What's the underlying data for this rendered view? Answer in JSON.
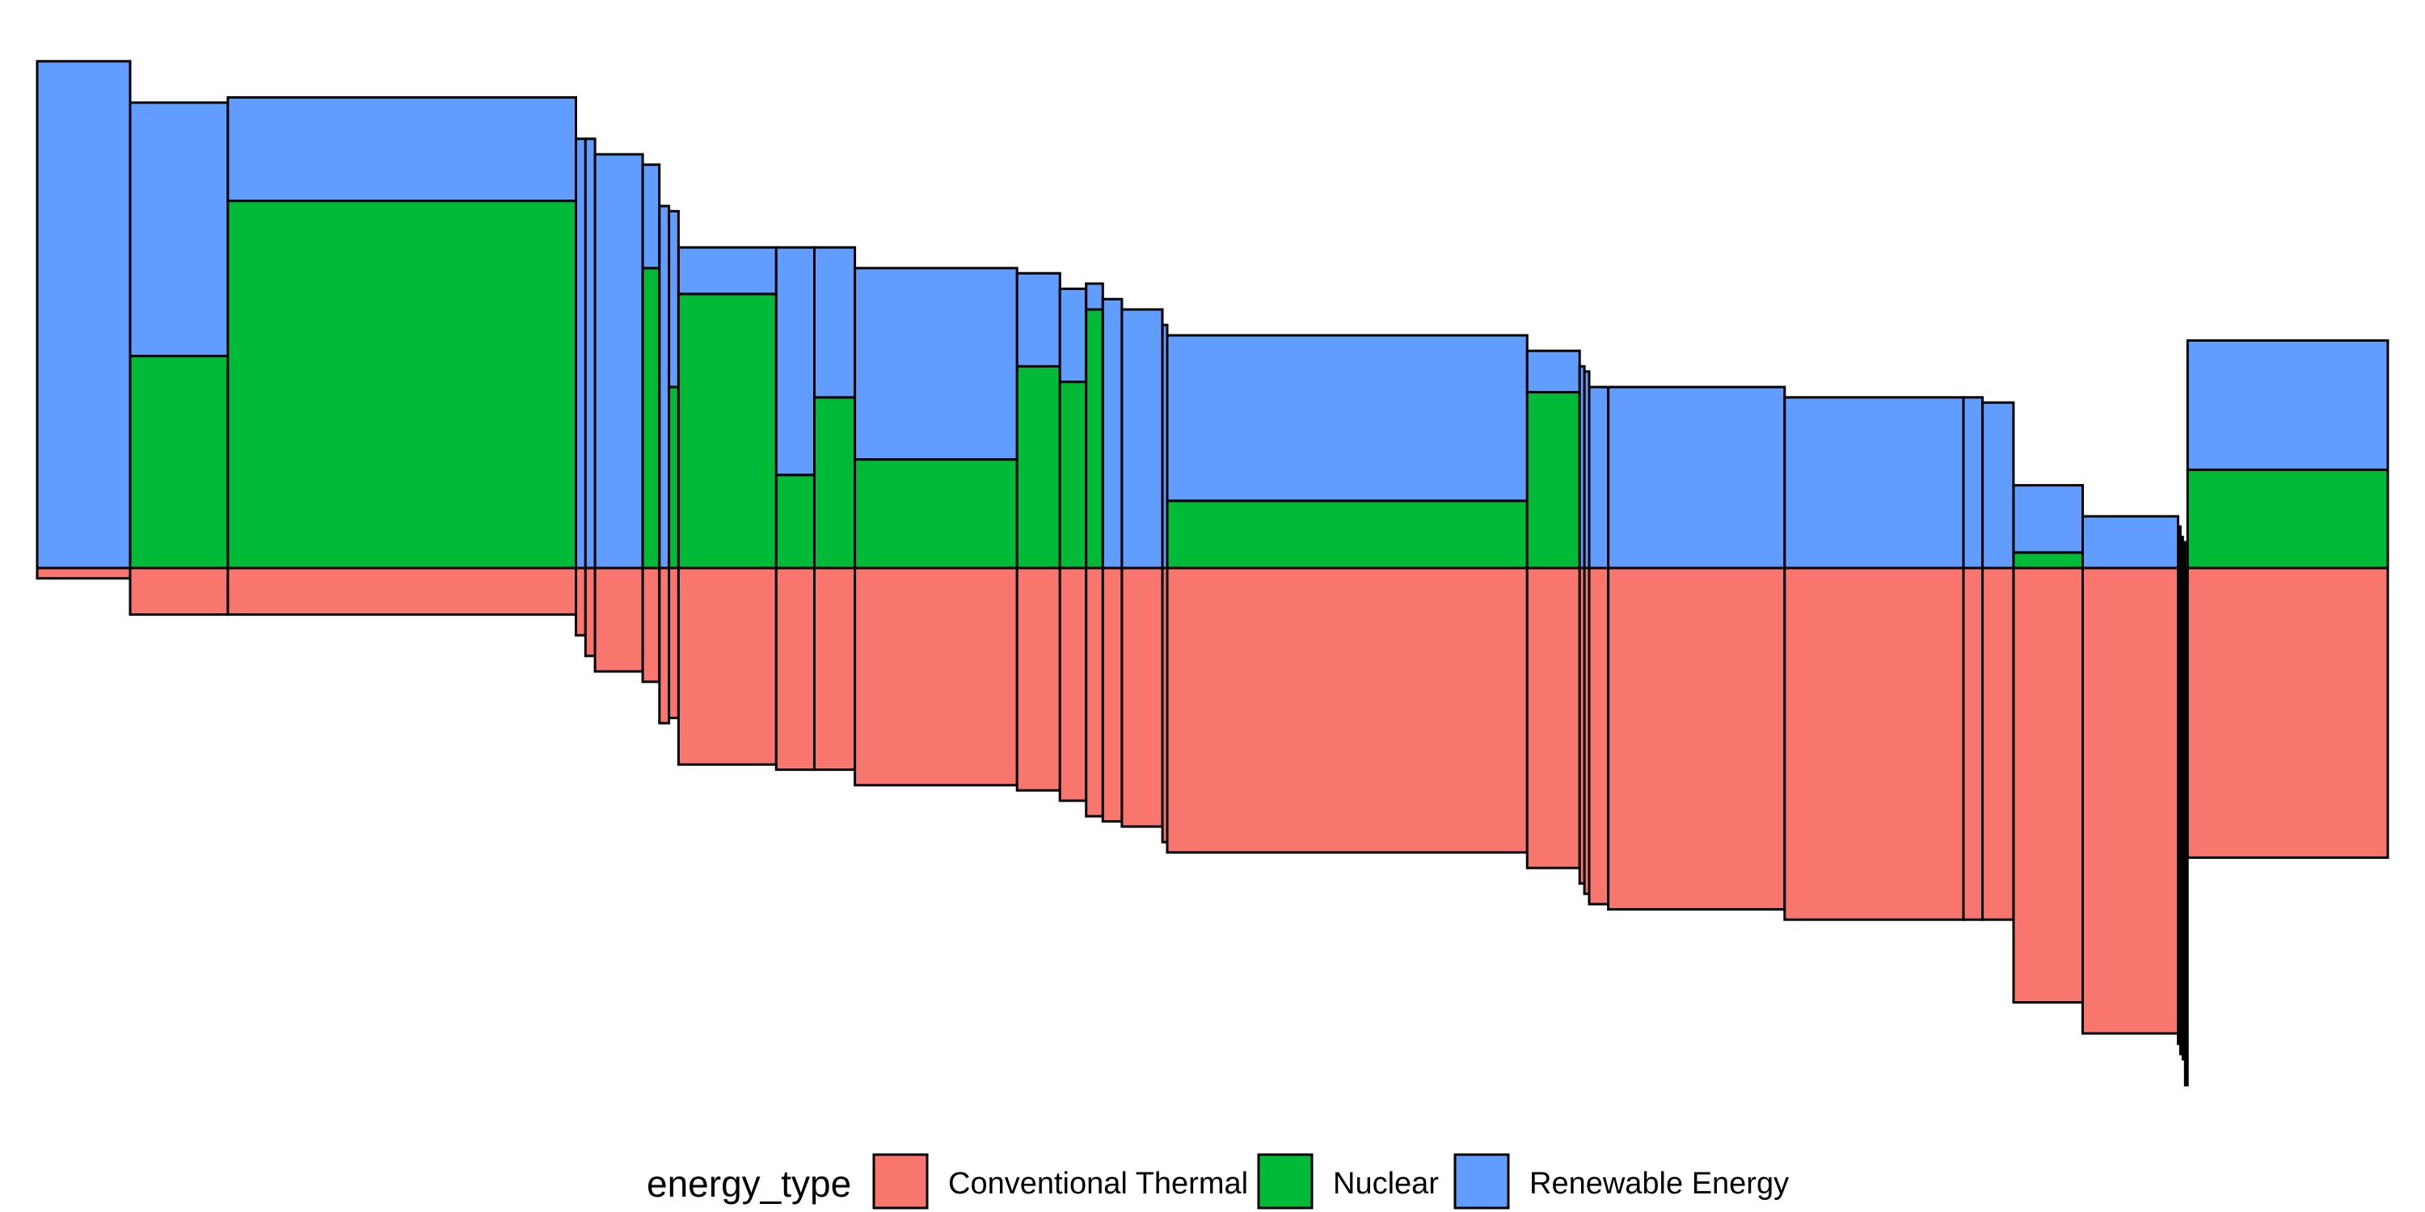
{
  "chart_data": {
    "type": "bar",
    "variant": "variable-width diverging stacked bar (mosaic)",
    "legend": {
      "title": "energy_type",
      "position": "bottom",
      "items": [
        {
          "name": "Conventional Thermal",
          "color": "#F8766D"
        },
        {
          "name": "Nuclear",
          "color": "#00BA38"
        },
        {
          "name": "Renewable Energy",
          "color": "#619CFF"
        }
      ]
    },
    "axes_shown": false,
    "grid": false,
    "value_unit": "share of total generation",
    "ylim": [
      -1.0,
      1.0
    ],
    "countries": [
      {
        "width": 0.039,
        "thermal": 0.02,
        "nuclear": 0.0,
        "renewable": 0.98
      },
      {
        "width": 0.041,
        "thermal": 0.09,
        "nuclear": 0.41,
        "renewable": 0.49
      },
      {
        "width": 0.146,
        "thermal": 0.09,
        "nuclear": 0.71,
        "renewable": 0.2
      },
      {
        "width": 0.004,
        "thermal": 0.13,
        "nuclear": 0.0,
        "renewable": 0.83
      },
      {
        "width": 0.004,
        "thermal": 0.17,
        "nuclear": 0.0,
        "renewable": 0.83
      },
      {
        "width": 0.02,
        "thermal": 0.2,
        "nuclear": 0.0,
        "renewable": 0.8
      },
      {
        "width": 0.007,
        "thermal": 0.22,
        "nuclear": 0.58,
        "renewable": 0.2
      },
      {
        "width": 0.004,
        "thermal": 0.3,
        "nuclear": 0.0,
        "renewable": 0.7
      },
      {
        "width": 0.004,
        "thermal": 0.29,
        "nuclear": 0.35,
        "renewable": 0.34
      },
      {
        "width": 0.041,
        "thermal": 0.38,
        "nuclear": 0.53,
        "renewable": 0.09
      },
      {
        "width": 0.016,
        "thermal": 0.39,
        "nuclear": 0.18,
        "renewable": 0.44
      },
      {
        "width": 0.017,
        "thermal": 0.39,
        "nuclear": 0.33,
        "renewable": 0.29
      },
      {
        "width": 0.068,
        "thermal": 0.42,
        "nuclear": 0.21,
        "renewable": 0.37
      },
      {
        "width": 0.018,
        "thermal": 0.43,
        "nuclear": 0.39,
        "renewable": 0.18
      },
      {
        "width": 0.011,
        "thermal": 0.45,
        "nuclear": 0.36,
        "renewable": 0.18
      },
      {
        "width": 0.007,
        "thermal": 0.48,
        "nuclear": 0.5,
        "renewable": 0.05
      },
      {
        "width": 0.008,
        "thermal": 0.49,
        "nuclear": 0.0,
        "renewable": 0.52
      },
      {
        "width": 0.017,
        "thermal": 0.5,
        "nuclear": 0.0,
        "renewable": 0.5
      },
      {
        "width": 0.002,
        "thermal": 0.53,
        "nuclear": 0.0,
        "renewable": 0.47
      },
      {
        "width": 0.151,
        "thermal": 0.55,
        "nuclear": 0.13,
        "renewable": 0.32
      },
      {
        "width": 0.022,
        "thermal": 0.58,
        "nuclear": 0.34,
        "renewable": 0.08
      },
      {
        "width": 0.002,
        "thermal": 0.61,
        "nuclear": 0.0,
        "renewable": 0.39
      },
      {
        "width": 0.002,
        "thermal": 0.63,
        "nuclear": 0.0,
        "renewable": 0.38
      },
      {
        "width": 0.008,
        "thermal": 0.65,
        "nuclear": 0.0,
        "renewable": 0.35
      },
      {
        "width": 0.074,
        "thermal": 0.66,
        "nuclear": 0.0,
        "renewable": 0.35
      },
      {
        "width": 0.075,
        "thermal": 0.68,
        "nuclear": 0.0,
        "renewable": 0.33
      },
      {
        "width": 0.008,
        "thermal": 0.68,
        "nuclear": 0.0,
        "renewable": 0.33
      },
      {
        "width": 0.013,
        "thermal": 0.68,
        "nuclear": 0.0,
        "renewable": 0.32
      },
      {
        "width": 0.029,
        "thermal": 0.84,
        "nuclear": 0.03,
        "renewable": 0.13
      },
      {
        "width": 0.04,
        "thermal": 0.9,
        "nuclear": 0.0,
        "renewable": 0.1
      },
      {
        "width": 0.001,
        "thermal": 0.92,
        "nuclear": 0.0,
        "renewable": 0.08
      },
      {
        "width": 0.001,
        "thermal": 0.94,
        "nuclear": 0.0,
        "renewable": 0.06
      },
      {
        "width": 0.001,
        "thermal": 0.95,
        "nuclear": 0.0,
        "renewable": 0.05
      },
      {
        "width": 0.001,
        "thermal": 1.0,
        "nuclear": 0.0,
        "renewable": 0.0
      },
      {
        "width": 0.084,
        "thermal": 0.56,
        "nuclear": 0.19,
        "renewable": 0.25
      }
    ]
  }
}
